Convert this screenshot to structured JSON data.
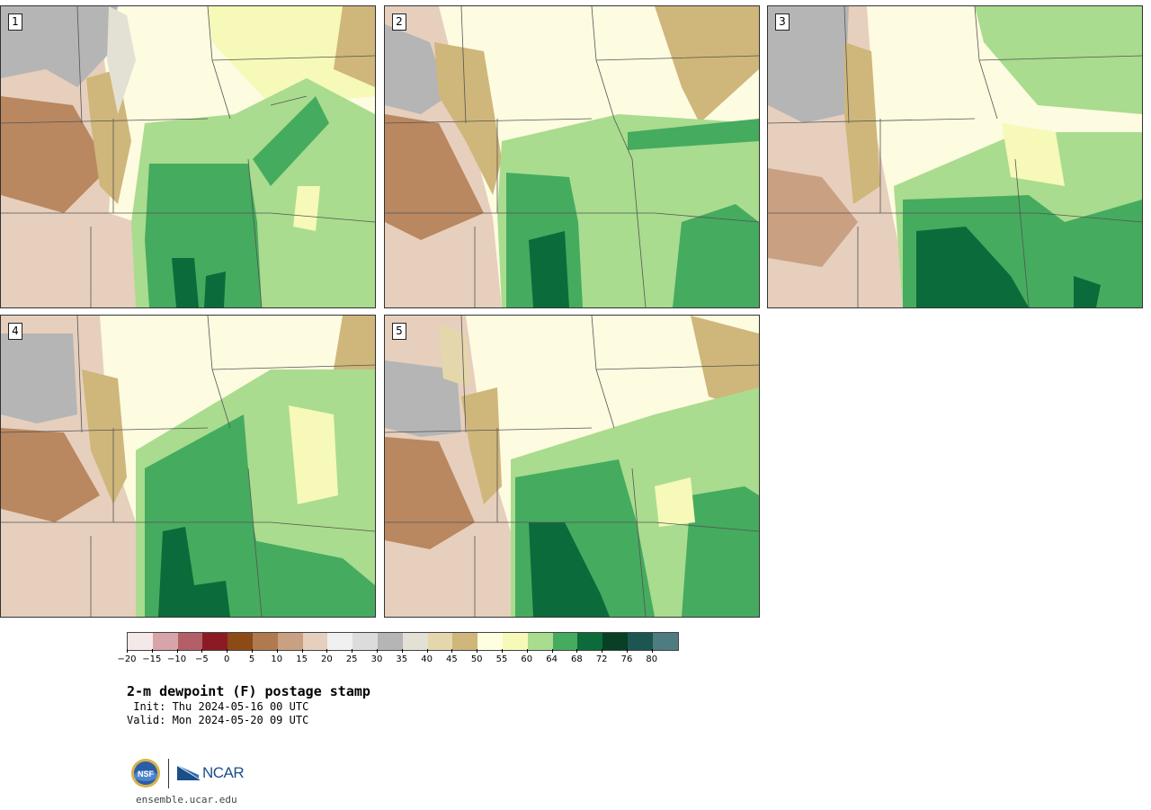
{
  "panels": [
    {
      "label": "1"
    },
    {
      "label": "2"
    },
    {
      "label": "3"
    },
    {
      "label": "4"
    },
    {
      "label": "5"
    }
  ],
  "colorbar": {
    "colors": [
      "#f5e8e8",
      "#d6a4a9",
      "#b35f67",
      "#8c1a24",
      "#8c4a16",
      "#b07a50",
      "#c9a082",
      "#e6cfbd",
      "#f0f0f0",
      "#dcdcdc",
      "#b5b5b5",
      "#e3e1d3",
      "#e5d7ac",
      "#cfb67a",
      "#fefee0",
      "#f6f9b8",
      "#a9dc8e",
      "#45ab5f",
      "#0c6b3a",
      "#083f25",
      "#1c5650",
      "#4e7c80"
    ],
    "tick_labels": [
      "-20",
      "-15",
      "-10",
      "-5",
      "0",
      "5",
      "10",
      "15",
      "20",
      "25",
      "30",
      "35",
      "40",
      "45",
      "50",
      "55",
      "60",
      "64",
      "68",
      "72",
      "76",
      "80"
    ]
  },
  "title": "2-m dewpoint (F) postage stamp",
  "init": " Init: Thu 2024-05-16 00 UTC",
  "valid": "Valid: Mon 2024-05-20 09 UTC",
  "logos": {
    "ncar_text": "NCAR",
    "nsf_text": "NSF"
  },
  "url": "ensemble.ucar.edu"
}
